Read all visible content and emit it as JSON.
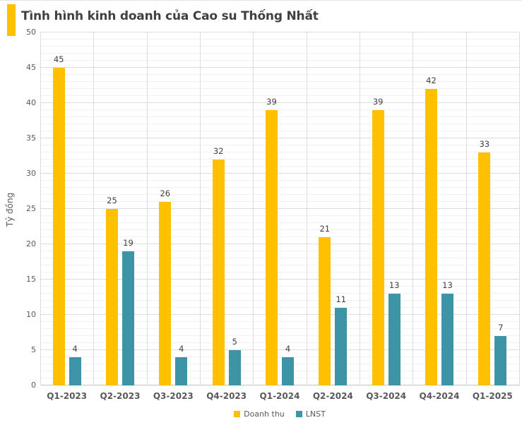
{
  "title": "Tình hình kinh doanh của Cao su Thống Nhất",
  "chart_data": {
    "type": "bar",
    "title": "Tình hình kinh doanh của Cao su Thống Nhất",
    "categories": [
      "Q1-2023",
      "Q2-2023",
      "Q3-2023",
      "Q4-2023",
      "Q1-2024",
      "Q2-2024",
      "Q3-2024",
      "Q4-2024",
      "Q1-2025"
    ],
    "series": [
      {
        "name": "Doanh thu",
        "color": "#FFC000",
        "values": [
          45,
          25,
          26,
          32,
          39,
          21,
          39,
          42,
          33
        ]
      },
      {
        "name": "LNST",
        "color": "#3E94A7",
        "values": [
          4,
          19,
          4,
          5,
          4,
          11,
          13,
          13,
          7
        ]
      }
    ],
    "xlabel": "",
    "ylabel": "Tỷ đồng",
    "ylim": [
      0,
      50
    ],
    "y_major_step": 5,
    "y_minor_step": 1,
    "grid": true,
    "legend_position": "bottom",
    "accent_color": "#FFC000",
    "title_color": "#404040"
  }
}
